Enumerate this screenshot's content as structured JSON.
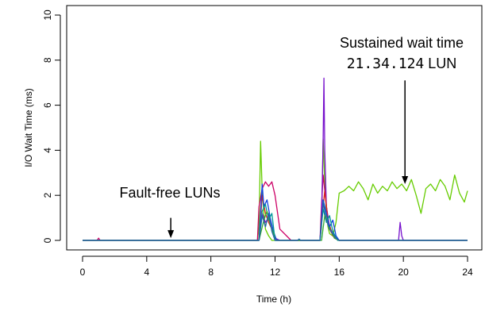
{
  "chart_data": {
    "type": "line",
    "title": "",
    "xlabel": "Time (h)",
    "ylabel": "I/O Wait Time (ms)",
    "xlim": [
      0,
      24
    ],
    "ylim": [
      0,
      10
    ],
    "xticks": [
      0,
      4,
      8,
      12,
      16,
      20,
      24
    ],
    "yticks": [
      0,
      2,
      4,
      6,
      8,
      10
    ],
    "grid": false,
    "legend": "none",
    "series_note_colors": [
      "#66cc00",
      "#cc0066",
      "#7711cc",
      "#dd2222",
      "#1144dd",
      "#009999",
      "#33aa33",
      "#2266aa"
    ],
    "series": [
      {
        "color": "#66cc00",
        "x": [
          0.0,
          0.5,
          1.0,
          1.2,
          2.0,
          4.0,
          6.0,
          8.0,
          10.0,
          10.9,
          11.0,
          11.1,
          11.2,
          11.3,
          11.4,
          11.6,
          11.8,
          12.0,
          12.3,
          12.6,
          13.0,
          13.5,
          14.0,
          14.5,
          14.8,
          14.9,
          15.0,
          15.1,
          15.2,
          15.3,
          15.4,
          15.6,
          15.8,
          16.0,
          16.3,
          16.6,
          16.9,
          17.2,
          17.5,
          17.8,
          18.1,
          18.4,
          18.7,
          19.0,
          19.3,
          19.6,
          19.9,
          20.2,
          20.5,
          20.8,
          21.1,
          21.4,
          21.7,
          22.0,
          22.3,
          22.6,
          22.9,
          23.2,
          23.5,
          23.8,
          24.0
        ],
        "y": [
          0.0,
          0.0,
          0.0,
          0.0,
          0.0,
          0.0,
          0.0,
          0.0,
          0.0,
          0.0,
          0.6,
          4.4,
          2.2,
          1.2,
          0.5,
          0.2,
          0.0,
          0.0,
          0.0,
          0.0,
          0.0,
          0.0,
          0.0,
          0.0,
          0.0,
          0.6,
          4.5,
          2.5,
          1.2,
          0.6,
          0.3,
          0.2,
          0.8,
          2.1,
          2.2,
          2.4,
          2.2,
          2.6,
          2.3,
          1.8,
          2.5,
          2.1,
          2.4,
          2.2,
          2.6,
          2.3,
          2.5,
          2.2,
          2.7,
          2.0,
          1.2,
          2.3,
          2.5,
          2.2,
          2.7,
          2.4,
          1.8,
          2.9,
          2.1,
          1.7,
          2.2
        ]
      },
      {
        "color": "#cc0066",
        "x": [
          0.0,
          0.9,
          1.0,
          1.1,
          2.0,
          6.0,
          10.0,
          10.9,
          11.0,
          11.2,
          11.4,
          11.6,
          11.8,
          12.0,
          12.3,
          13.0,
          14.0,
          14.8,
          14.9,
          15.0,
          15.2,
          15.4,
          15.7,
          16.0,
          18.0,
          20.0,
          22.0,
          24.0
        ],
        "y": [
          0.0,
          0.0,
          0.1,
          0.0,
          0.0,
          0.0,
          0.0,
          0.0,
          1.5,
          2.3,
          2.6,
          2.4,
          2.6,
          2.0,
          0.5,
          0.0,
          0.0,
          0.0,
          1.6,
          2.9,
          1.5,
          0.5,
          0.1,
          0.0,
          0.0,
          0.0,
          0.0,
          0.0
        ]
      },
      {
        "color": "#7711cc",
        "x": [
          0.0,
          6.0,
          10.0,
          11.0,
          11.2,
          11.4,
          11.6,
          11.8,
          12.0,
          12.3,
          13.0,
          14.0,
          14.8,
          14.9,
          15.0,
          15.05,
          15.1,
          15.2,
          15.4,
          15.6,
          15.8,
          16.0,
          18.0,
          19.6,
          19.7,
          19.8,
          19.9,
          20.0,
          21.0,
          24.0
        ],
        "y": [
          0.0,
          0.0,
          0.0,
          0.0,
          1.2,
          0.8,
          1.0,
          0.5,
          0.1,
          0.0,
          0.0,
          0.0,
          0.0,
          1.0,
          4.5,
          7.2,
          4.0,
          1.5,
          0.6,
          0.3,
          0.1,
          0.0,
          0.0,
          0.0,
          0.0,
          0.8,
          0.2,
          0.0,
          0.0,
          0.0
        ]
      },
      {
        "color": "#dd2222",
        "x": [
          0.0,
          6.0,
          11.0,
          11.2,
          11.4,
          11.6,
          11.8,
          12.1,
          13.0,
          14.8,
          15.0,
          15.1,
          15.3,
          15.6,
          16.0,
          24.0
        ],
        "y": [
          0.0,
          0.0,
          0.0,
          2.0,
          1.2,
          0.8,
          0.5,
          0.0,
          0.0,
          0.0,
          1.5,
          2.2,
          0.9,
          0.2,
          0.0,
          0.0
        ]
      },
      {
        "color": "#1144dd",
        "x": [
          0.0,
          6.0,
          11.0,
          11.2,
          11.3,
          11.5,
          11.7,
          11.9,
          12.1,
          13.0,
          14.8,
          15.0,
          15.2,
          15.4,
          15.6,
          15.8,
          16.0,
          24.0
        ],
        "y": [
          0.0,
          0.0,
          0.0,
          2.5,
          1.5,
          1.8,
          1.0,
          0.4,
          0.0,
          0.0,
          0.0,
          1.8,
          1.2,
          0.6,
          0.9,
          0.2,
          0.0,
          0.0
        ]
      },
      {
        "color": "#009999",
        "x": [
          0.0,
          6.0,
          11.0,
          11.2,
          11.4,
          11.6,
          11.8,
          12.0,
          13.0,
          14.8,
          15.0,
          15.2,
          15.4,
          15.6,
          15.9,
          24.0
        ],
        "y": [
          0.0,
          0.0,
          0.0,
          1.3,
          1.6,
          0.9,
          1.2,
          0.0,
          0.0,
          0.0,
          1.4,
          0.8,
          1.1,
          0.4,
          0.0,
          0.0
        ]
      },
      {
        "color": "#33aa33",
        "x": [
          0.0,
          6.0,
          11.0,
          11.3,
          11.5,
          11.7,
          11.9,
          12.0,
          14.9,
          15.1,
          15.3,
          15.5,
          15.7,
          16.0,
          24.0
        ],
        "y": [
          0.0,
          0.0,
          0.0,
          0.9,
          1.3,
          0.7,
          0.3,
          0.0,
          0.0,
          1.1,
          0.7,
          0.4,
          0.1,
          0.0,
          0.0
        ]
      },
      {
        "color": "#2266aa",
        "x": [
          0.0,
          6.0,
          11.0,
          11.2,
          11.4,
          11.6,
          11.8,
          12.0,
          13.4,
          13.5,
          13.6,
          14.8,
          15.0,
          15.2,
          15.4,
          15.6,
          15.8,
          16.0,
          24.0
        ],
        "y": [
          0.0,
          0.0,
          0.0,
          1.1,
          0.6,
          1.2,
          0.4,
          0.0,
          0.0,
          0.06,
          0.0,
          0.0,
          1.7,
          0.9,
          0.5,
          0.3,
          0.1,
          0.0,
          0.0
        ]
      }
    ],
    "annotations": [
      {
        "text": "Fault-free LUNs",
        "arrow_to": [
          5.5,
          0.1
        ],
        "arrow_from": [
          5.5,
          1.0
        ]
      },
      {
        "text": "Sustained wait time",
        "text2": "21.34.124",
        "text2_suffix": " LUN",
        "arrow_to": [
          20.1,
          2.5
        ],
        "arrow_from": [
          20.1,
          7.1
        ]
      }
    ]
  }
}
